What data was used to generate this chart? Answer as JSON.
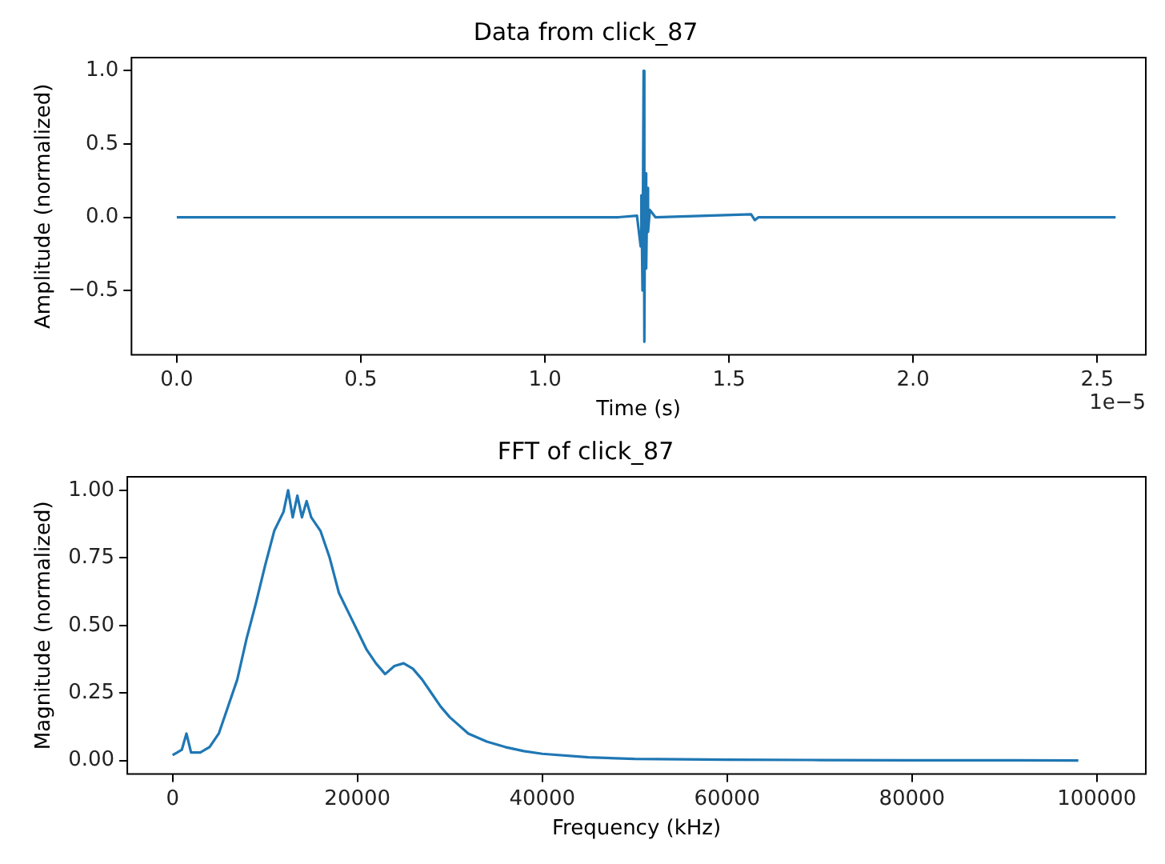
{
  "chart_data": [
    {
      "type": "line",
      "title": "Data from click_87",
      "xlabel": "Time (s)",
      "ylabel": "Amplitude (normalized)",
      "annotations": [
        "1e−5"
      ],
      "grid": false,
      "legend": false,
      "marker": "none",
      "line_style": "solid",
      "xlim": [
        -0.123,
        2.632
      ],
      "ylim": [
        -0.94,
        1.09
      ],
      "xticks": [
        {
          "value": 0,
          "label": "0.0"
        },
        0.5,
        {
          "value": 1,
          "label": "1.0"
        },
        1.5,
        {
          "value": 2,
          "label": "2.0"
        },
        2.5
      ],
      "yticks": [
        {
          "value": -0.5,
          "label": "−0.5"
        },
        {
          "value": 0,
          "label": "0.0"
        },
        {
          "value": 0.5,
          "label": "0.5"
        },
        {
          "value": 1,
          "label": "1.0"
        }
      ],
      "series": [
        {
          "color": "#1f77b4",
          "x": [
            0,
            0.5,
            1.0,
            1.2,
            1.25,
            1.26,
            1.262,
            1.265,
            1.268,
            1.27,
            1.272,
            1.275,
            1.278,
            1.28,
            1.285,
            1.3,
            1.56,
            1.57,
            1.58,
            2.0,
            2.55
          ],
          "values": [
            0,
            0,
            0,
            0,
            0.01,
            -0.2,
            0.15,
            -0.5,
            1.0,
            -0.85,
            0.3,
            -0.35,
            0.2,
            -0.1,
            0.05,
            0,
            0.02,
            -0.02,
            0,
            0,
            0
          ]
        }
      ]
    },
    {
      "type": "line",
      "title": "FFT of click_87",
      "xlabel": "Frequency (kHz)",
      "ylabel": "Magnitude (normalized)",
      "grid": false,
      "legend": false,
      "marker": "none",
      "line_style": "solid",
      "xlim": [
        -4900,
        105300
      ],
      "ylim": [
        -0.05,
        1.05
      ],
      "xticks": [
        0,
        20000,
        40000,
        60000,
        80000,
        100000
      ],
      "yticks": [
        {
          "value": 0,
          "label": "0.00"
        },
        {
          "value": 0.25,
          "label": "0.25"
        },
        {
          "value": 0.5,
          "label": "0.50"
        },
        {
          "value": 0.75,
          "label": "0.75"
        },
        {
          "value": 1,
          "label": "1.00"
        }
      ],
      "series": [
        {
          "color": "#1f77b4",
          "x": [
            0,
            500,
            1000,
            1500,
            2000,
            3000,
            4000,
            5000,
            6000,
            7000,
            8000,
            9000,
            10000,
            11000,
            12000,
            12500,
            13000,
            13500,
            14000,
            14500,
            15000,
            16000,
            17000,
            18000,
            19000,
            20000,
            21000,
            22000,
            23000,
            24000,
            25000,
            26000,
            27000,
            28000,
            29000,
            30000,
            32000,
            34000,
            36000,
            38000,
            40000,
            45000,
            50000,
            60000,
            70000,
            80000,
            90000,
            98000
          ],
          "values": [
            0.02,
            0.03,
            0.04,
            0.1,
            0.03,
            0.03,
            0.05,
            0.1,
            0.2,
            0.3,
            0.45,
            0.58,
            0.72,
            0.85,
            0.92,
            1.0,
            0.9,
            0.98,
            0.9,
            0.96,
            0.9,
            0.85,
            0.75,
            0.62,
            0.55,
            0.48,
            0.41,
            0.36,
            0.32,
            0.35,
            0.36,
            0.34,
            0.3,
            0.25,
            0.2,
            0.16,
            0.1,
            0.07,
            0.05,
            0.035,
            0.025,
            0.012,
            0.006,
            0.003,
            0.002,
            0.001,
            0.001,
            0
          ]
        }
      ]
    }
  ]
}
